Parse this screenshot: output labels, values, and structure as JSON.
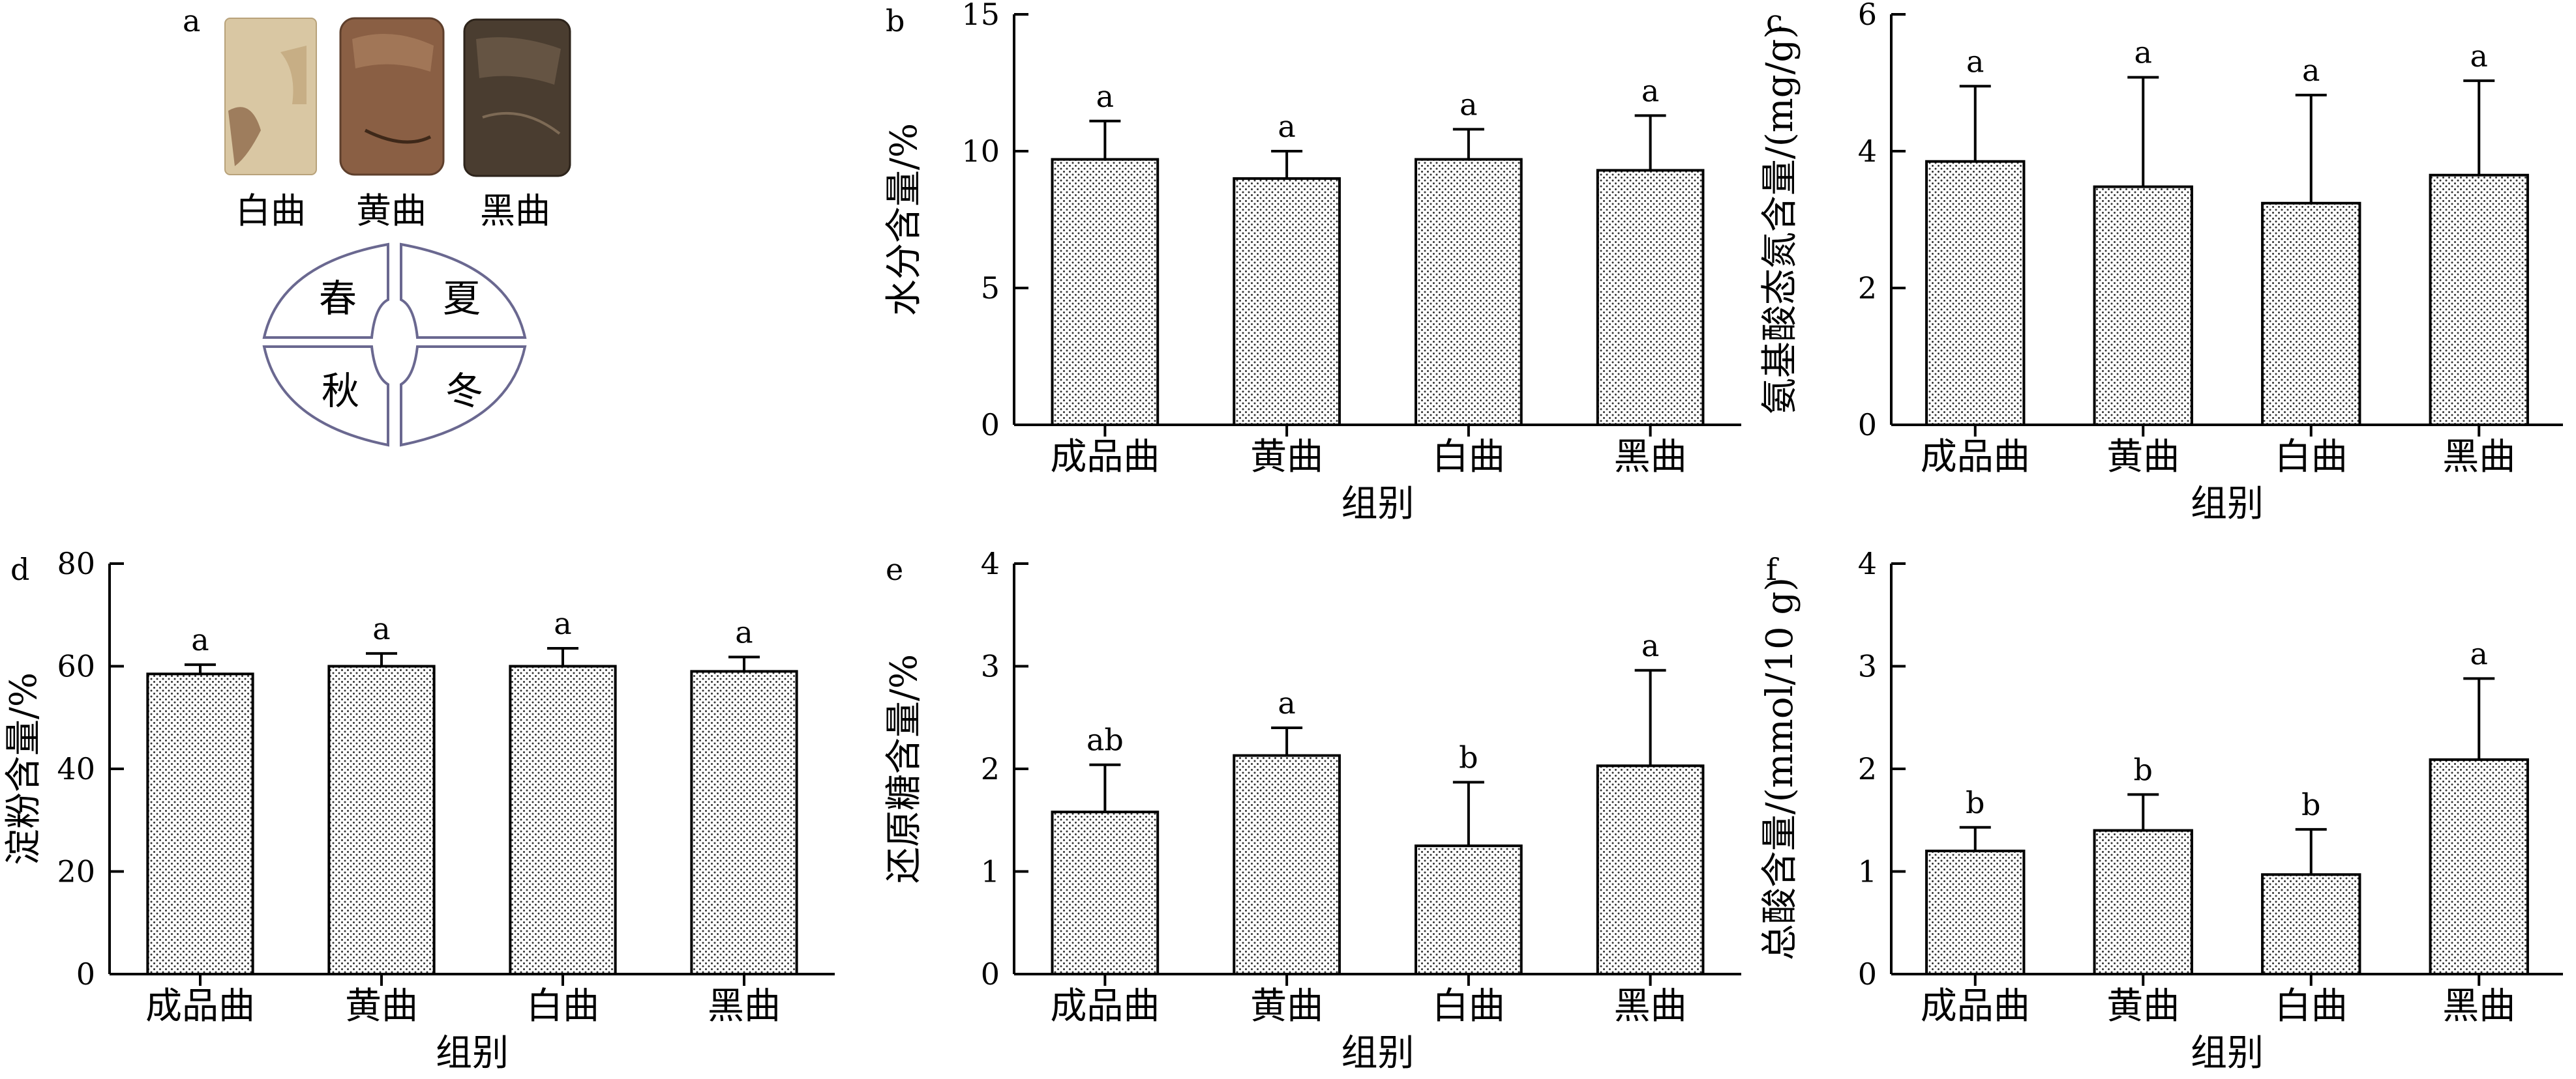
{
  "panel_a": {
    "letter": "a",
    "samples": [
      "白曲",
      "黄曲",
      "黑曲"
    ],
    "seasons": [
      "春",
      "夏",
      "秋",
      "冬"
    ]
  },
  "colors": {
    "bar_fill": "#ffffff",
    "bar_dots": "#333333",
    "axis": "#000000",
    "diagram_stroke": "#6a6890",
    "white_qu": "#d9c7a3",
    "yellow_qu": "#8a5f44",
    "black_qu": "#4a3d30"
  },
  "chart_data": [
    {
      "id": "b",
      "letter": "b",
      "type": "bar",
      "categories": [
        "成品曲",
        "黄曲",
        "白曲",
        "黑曲"
      ],
      "values": [
        9.7,
        9.0,
        9.7,
        9.3
      ],
      "errors": [
        1.4,
        1.0,
        1.1,
        2.0
      ],
      "significance": [
        "a",
        "a",
        "a",
        "a"
      ],
      "ylim": [
        0,
        15
      ],
      "yticks": [
        0,
        5,
        10,
        15
      ],
      "ylabel": "水分含量/%",
      "xlabel": "组别"
    },
    {
      "id": "c",
      "letter": "c",
      "type": "bar",
      "categories": [
        "成品曲",
        "黄曲",
        "白曲",
        "黑曲"
      ],
      "values": [
        3.85,
        3.48,
        3.24,
        3.65
      ],
      "errors": [
        1.1,
        1.6,
        1.58,
        1.38
      ],
      "significance": [
        "a",
        "a",
        "a",
        "a"
      ],
      "ylim": [
        0,
        6
      ],
      "yticks": [
        0,
        2,
        4,
        6
      ],
      "ylabel": "氨基酸态氮含量/(mg/g)",
      "xlabel": "组别"
    },
    {
      "id": "d",
      "letter": "d",
      "type": "bar",
      "categories": [
        "成品曲",
        "黄曲",
        "白曲",
        "黑曲"
      ],
      "values": [
        58.5,
        60.0,
        60.0,
        59.0
      ],
      "errors": [
        1.8,
        2.5,
        3.5,
        2.8
      ],
      "significance": [
        "a",
        "a",
        "a",
        "a"
      ],
      "ylim": [
        0,
        80
      ],
      "yticks": [
        0,
        20,
        40,
        60,
        80
      ],
      "ylabel": "淀粉含量/%",
      "xlabel": "组别"
    },
    {
      "id": "e",
      "letter": "e",
      "type": "bar",
      "categories": [
        "成品曲",
        "黄曲",
        "白曲",
        "黑曲"
      ],
      "values": [
        1.58,
        2.13,
        1.25,
        2.03
      ],
      "errors": [
        0.46,
        0.27,
        0.62,
        0.93
      ],
      "significance": [
        "ab",
        "a",
        "b",
        "a"
      ],
      "ylim": [
        0,
        4
      ],
      "yticks": [
        0,
        1,
        2,
        3,
        4
      ],
      "ylabel": "还原糖含量/%",
      "xlabel": "组别"
    },
    {
      "id": "f",
      "letter": "f",
      "type": "bar",
      "categories": [
        "成品曲",
        "黄曲",
        "白曲",
        "黑曲"
      ],
      "values": [
        1.2,
        1.4,
        0.97,
        2.09
      ],
      "errors": [
        0.23,
        0.35,
        0.44,
        0.79
      ],
      "significance": [
        "b",
        "b",
        "b",
        "a"
      ],
      "ylim": [
        0,
        4
      ],
      "yticks": [
        0,
        1,
        2,
        3,
        4
      ],
      "ylabel": "总酸含量/(mmol/10 g)",
      "xlabel": "组别"
    }
  ]
}
